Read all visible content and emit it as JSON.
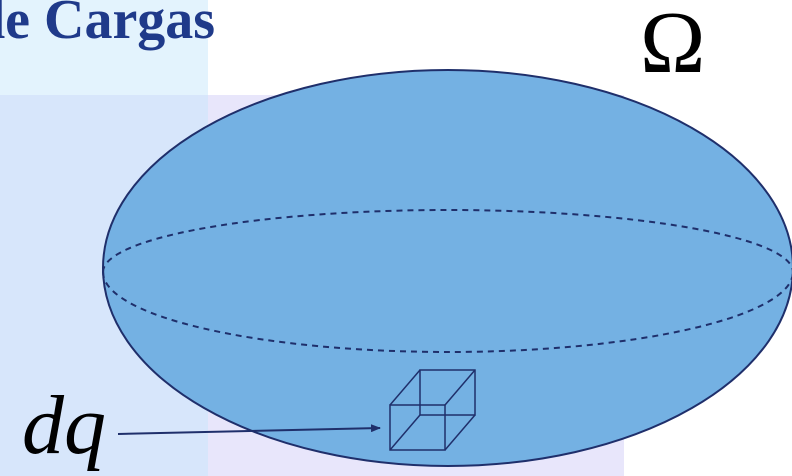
{
  "slide": {
    "title": "de Cargas",
    "region_label": "Ω",
    "element_label": "dq"
  },
  "colors": {
    "ellipsoid_fill": "#74b1e3",
    "ellipsoid_stroke": "#1f2f6b",
    "title_color": "#1f3a8a",
    "band_top": "#e3f3fd",
    "band_left": "#d7e6fb",
    "band_right": "#e8e6fb"
  }
}
